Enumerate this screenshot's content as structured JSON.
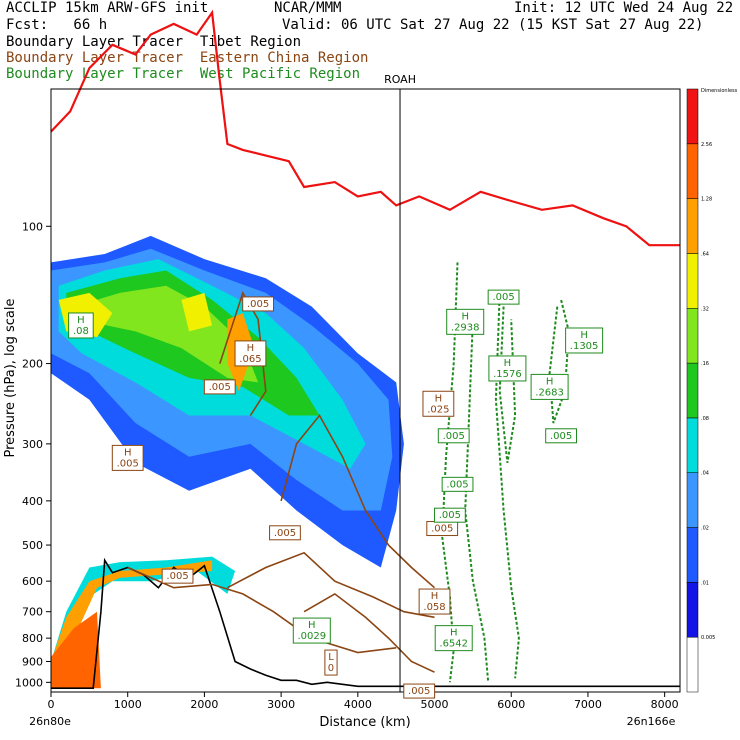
{
  "header": {
    "model": "ACCLIP 15km ARW-GFS init",
    "org": "NCAR/MMM",
    "init": "Init: 12 UTC Wed 24 Aug 22",
    "fcst": "Fcst:   66 h",
    "valid": "Valid: 06 UTC Sat 27 Aug 22 (15 KST Sat 27 Aug 22)",
    "tracers": [
      {
        "label": "Boundary Layer Tracer  Tibet Region",
        "color": "#000000"
      },
      {
        "label": "Boundary Layer Tracer  Eastern China Region",
        "color": "#8B4513"
      },
      {
        "label": "Boundary Layer Tracer  West Pacific Region",
        "color": "#1E8B1E"
      }
    ]
  },
  "chart_data": {
    "type": "heatmap",
    "title": "ACCLIP 15km ARW-GFS init",
    "xlabel": "Distance (km)",
    "ylabel": "Pressure (hPa), log scale",
    "xlim": [
      0,
      8200
    ],
    "ylim": [
      1050,
      50
    ],
    "log_y": true,
    "x_ticks": [
      0,
      1000,
      2000,
      3000,
      4000,
      5000,
      6000,
      7000,
      8000
    ],
    "y_ticks": [
      100,
      200,
      300,
      400,
      500,
      600,
      700,
      800,
      900,
      1000
    ],
    "start_label": "26n80e",
    "end_label": "26n166e",
    "marker": {
      "x": 4550,
      "label": "ROAH"
    },
    "colorbar": {
      "levels": [
        "0.005",
        ".01",
        ".02",
        ".04",
        ".08",
        ".16",
        ".32",
        ".64",
        "1.28",
        "2.56",
        "Dimensionless"
      ],
      "colors": [
        "#ffffff",
        "#1414e6",
        "#1e5aff",
        "#3c96ff",
        "#00dcdc",
        "#1ec81e",
        "#82e61e",
        "#f0f000",
        "#ffa000",
        "#ff6400",
        "#f01414"
      ]
    },
    "tropopause": {
      "color": "#ee1111",
      "x": [
        0,
        250,
        500,
        800,
        1100,
        1300,
        1600,
        1900,
        2100,
        2200,
        2300,
        2500,
        2800,
        3100,
        3300,
        3700,
        4000,
        4300,
        4500,
        4800,
        5200,
        5600,
        6000,
        6400,
        6800,
        7200,
        7500,
        7800,
        8200
      ],
      "p": [
        62,
        56,
        45,
        40,
        42,
        38,
        36,
        38,
        34,
        48,
        66,
        68,
        70,
        72,
        82,
        80,
        86,
        84,
        90,
        86,
        92,
        84,
        88,
        92,
        90,
        96,
        100,
        110,
        110
      ]
    },
    "terrain": {
      "color": "#000000",
      "x": [
        0,
        550,
        650,
        700,
        800,
        1000,
        1200,
        1400,
        1600,
        1800,
        2000,
        2200,
        2400,
        2600,
        2800,
        3000,
        3200,
        3400,
        3600,
        4000,
        5000,
        8200
      ],
      "p": [
        1030,
        1030,
        700,
        540,
        575,
        560,
        580,
        620,
        560,
        590,
        555,
        700,
        900,
        935,
        965,
        990,
        990,
        1010,
        1000,
        1020,
        1020,
        1020
      ]
    },
    "tracer_labels": [
      {
        "text": "H .08",
        "x": 390,
        "p": 165,
        "color": "#1E8B1E"
      },
      {
        "text": ".005",
        "x": 2700,
        "p": 148,
        "color": "#8B4513"
      },
      {
        "text": "H .065",
        "x": 2600,
        "p": 190,
        "color": "#8B4513"
      },
      {
        "text": ".005",
        "x": 2200,
        "p": 225,
        "color": "#8B4513"
      },
      {
        "text": "H .005",
        "x": 1000,
        "p": 322,
        "color": "#8B4513"
      },
      {
        "text": ".005",
        "x": 1650,
        "p": 585,
        "color": "#8B4513"
      },
      {
        "text": ".005",
        "x": 3050,
        "p": 470,
        "color": "#8B4513"
      },
      {
        "text": "H .0029",
        "x": 3400,
        "p": 770,
        "color": "#1E8B1E"
      },
      {
        "text": "L 0",
        "x": 3650,
        "p": 905,
        "color": "#8B4513"
      },
      {
        "text": ".005",
        "x": 4800,
        "p": 1045,
        "color": "#8B4513"
      },
      {
        "text": ".005",
        "x": 5100,
        "p": 460,
        "color": "#8B4513"
      },
      {
        "text": "H .058",
        "x": 5000,
        "p": 665,
        "color": "#8B4513"
      },
      {
        "text": "H .6542",
        "x": 5250,
        "p": 800,
        "color": "#1E8B1E"
      },
      {
        "text": ".005",
        "x": 5250,
        "p": 288,
        "color": "#1E8B1E"
      },
      {
        "text": ".005",
        "x": 5300,
        "p": 368,
        "color": "#1E8B1E"
      },
      {
        "text": ".005",
        "x": 5200,
        "p": 430,
        "color": "#1E8B1E"
      },
      {
        "text": "H .2938",
        "x": 5400,
        "p": 162,
        "color": "#1E8B1E"
      },
      {
        "text": ".005",
        "x": 5900,
        "p": 143,
        "color": "#1E8B1E"
      },
      {
        "text": "H .1576",
        "x": 5950,
        "p": 205,
        "color": "#1E8B1E"
      },
      {
        "text": "H .2683",
        "x": 6500,
        "p": 225,
        "color": "#1E8B1E"
      },
      {
        "text": "H .1305",
        "x": 6950,
        "p": 178,
        "color": "#1E8B1E"
      },
      {
        "text": ".005",
        "x": 6650,
        "p": 288,
        "color": "#1E8B1E"
      },
      {
        "text": "H .025",
        "x": 5050,
        "p": 245,
        "color": "#8B4513"
      }
    ]
  }
}
